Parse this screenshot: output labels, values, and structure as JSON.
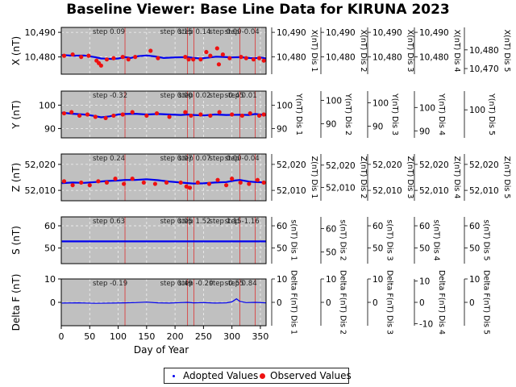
{
  "chart_data": {
    "type": "line",
    "title": "Baseline Viewer: Base Line Data for KIRUNA 2023",
    "xlabel": "Day of Year",
    "xlim": [
      0,
      360
    ],
    "xticks": [
      0,
      50,
      100,
      150,
      200,
      250,
      300,
      350
    ],
    "grid": true,
    "legend_position": "bottom-center",
    "vertical_lines": [
      112,
      222,
      233,
      314,
      341
    ],
    "legend": [
      {
        "label": "Adopted Values",
        "color": "#0000ee",
        "marker": "small-dot"
      },
      {
        "label": "Observed Values",
        "color": "#ee1111",
        "marker": "large-dot"
      }
    ],
    "panels": [
      {
        "ylabel": "X (nT)",
        "ylim": [
          10473,
          10492
        ],
        "yticks": [
          10480,
          10490
        ],
        "ytick_labels": [
          "10,480",
          "10,490"
        ],
        "steps": [
          {
            "x": 112,
            "label": "step 0.09"
          },
          {
            "x": 222,
            "label": "step 0.15"
          },
          {
            "x": 233,
            "label": "step 0.14"
          },
          {
            "x": 314,
            "label": "step 0.00"
          },
          {
            "x": 341,
            "label": "step -0.04"
          }
        ],
        "adopted": {
          "x": [
            1,
            20,
            40,
            60,
            70,
            80,
            90,
            100,
            112,
            122,
            135,
            150,
            165,
            180,
            200,
            222,
            233,
            245,
            262,
            272,
            285,
            300,
            314,
            330,
            341,
            350,
            360
          ],
          "y": [
            10480.8,
            10480.5,
            10480.6,
            10479.9,
            10479.4,
            10479.3,
            10479.2,
            10479.4,
            10479.9,
            10479.6,
            10480.3,
            10480.6,
            10480.2,
            10479.6,
            10479.8,
            10479.9,
            10479.6,
            10479.4,
            10479.8,
            10480.1,
            10480.0,
            10479.8,
            10479.9,
            10479.6,
            10479.5,
            10479.8,
            10479.4
          ]
        },
        "observed": {
          "x": [
            5,
            20,
            35,
            48,
            62,
            66,
            70,
            80,
            92,
            108,
            118,
            130,
            157,
            170,
            218,
            224,
            232,
            245,
            255,
            262,
            274,
            277,
            284,
            296,
            316,
            325,
            338,
            348,
            356
          ],
          "y": [
            10480.5,
            10481.0,
            10480.0,
            10480.5,
            10478.5,
            10477.5,
            10476.5,
            10479.0,
            10479.5,
            10480.0,
            10479.0,
            10480.0,
            10482.5,
            10479.5,
            10480.0,
            10479.0,
            10479.0,
            10479.0,
            10482.0,
            10480.5,
            10483.5,
            10477.0,
            10481.0,
            10479.5,
            10480.0,
            10479.5,
            10479.0,
            10479.5,
            10478.5
          ]
        },
        "right_axes": [
          {
            "label": "X(nT) Dis 1",
            "ylim": [
              10473,
              10492
            ],
            "ticks": [
              10480,
              10490
            ],
            "tick_labels": [
              "10,480",
              "10,490"
            ]
          },
          {
            "label": "X(nT) Dis 2",
            "ylim": [
              10473,
              10492
            ],
            "ticks": [
              10480,
              10490
            ],
            "tick_labels": [
              "10,480",
              "10,490"
            ]
          },
          {
            "label": "X(nT) Dis 3",
            "ylim": [
              10473,
              10492
            ],
            "ticks": [
              10480,
              10490
            ],
            "tick_labels": [
              "10,480",
              "10,490"
            ]
          },
          {
            "label": "X(nT) Dis 4",
            "ylim": [
              10473,
              10492
            ],
            "ticks": [
              10480,
              10490
            ],
            "tick_labels": [
              "10,480",
              "10,490"
            ]
          },
          {
            "label": "X(nT) Dis 5",
            "ylim": [
              10467,
              10492
            ],
            "ticks": [
              10470,
              10480
            ],
            "tick_labels": [
              "10,470",
              "10,480"
            ]
          }
        ]
      },
      {
        "ylabel": "Y (nT)",
        "ylim": [
          86,
          106
        ],
        "yticks": [
          90,
          100
        ],
        "ytick_labels": [
          "90",
          "100"
        ],
        "steps": [
          {
            "x": 112,
            "label": "step -0.32"
          },
          {
            "x": 222,
            "label": "step 0.00"
          },
          {
            "x": 233,
            "label": "step 0.02"
          },
          {
            "x": 314,
            "label": "step -0.45"
          },
          {
            "x": 341,
            "label": "step 0.01"
          }
        ],
        "adopted": {
          "x": [
            1,
            20,
            40,
            55,
            70,
            85,
            100,
            112,
            130,
            150,
            170,
            190,
            210,
            222,
            233,
            250,
            270,
            290,
            314,
            330,
            341,
            360
          ],
          "y": [
            96.8,
            96.3,
            96.0,
            95.5,
            94.8,
            95.2,
            96.0,
            96.2,
            96.3,
            96.0,
            96.2,
            96.0,
            95.8,
            96.0,
            95.8,
            95.6,
            96.0,
            95.8,
            95.9,
            95.8,
            96.2,
            95.7
          ]
        },
        "observed": {
          "x": [
            5,
            18,
            32,
            46,
            60,
            78,
            92,
            108,
            125,
            150,
            168,
            190,
            218,
            228,
            245,
            262,
            278,
            300,
            318,
            332,
            348,
            356
          ],
          "y": [
            96.5,
            97.0,
            95.5,
            96.0,
            95.0,
            94.5,
            95.5,
            96.0,
            97.0,
            95.5,
            96.5,
            95.0,
            97.0,
            95.5,
            96.0,
            95.5,
            97.0,
            96.0,
            95.5,
            96.5,
            95.5,
            96.0
          ]
        },
        "right_axes": [
          {
            "label": "Y(nT) Dis 1",
            "ylim": [
              86,
              106
            ],
            "ticks": [
              90,
              100
            ],
            "tick_labels": [
              "90",
              "100"
            ]
          },
          {
            "label": "Y(nT) Dis 2",
            "ylim": [
              84,
              104
            ],
            "ticks": [
              90,
              100
            ],
            "tick_labels": [
              "90",
              "100"
            ]
          },
          {
            "label": "Y(nT) Dis 3",
            "ylim": [
              85,
              105
            ],
            "ticks": [
              90,
              100
            ],
            "tick_labels": [
              "90",
              "100"
            ]
          },
          {
            "label": "Y(nT) Dis 4",
            "ylim": [
              87,
              107
            ],
            "ticks": [
              90,
              100
            ],
            "tick_labels": [
              "90",
              "100"
            ]
          },
          {
            "label": "Y(nT) Dis 5",
            "ylim": [
              88,
              108
            ],
            "ticks": [
              100
            ],
            "tick_labels": [
              "100"
            ]
          }
        ]
      },
      {
        "ylabel": "Z (nT)",
        "ylim": [
          52006,
          52024
        ],
        "yticks": [
          52010,
          52020
        ],
        "ytick_labels": [
          "52,010",
          "52,020"
        ],
        "steps": [
          {
            "x": 112,
            "label": "step 0.24"
          },
          {
            "x": 222,
            "label": "step 0.07"
          },
          {
            "x": 233,
            "label": "step 0.07"
          },
          {
            "x": 314,
            "label": "step 0.00"
          },
          {
            "x": 341,
            "label": "step -0.04"
          }
        ],
        "adopted": {
          "x": [
            1,
            20,
            40,
            60,
            80,
            100,
            112,
            130,
            150,
            170,
            190,
            210,
            222,
            233,
            250,
            270,
            290,
            305,
            314,
            330,
            341,
            360
          ],
          "y": [
            52012.8,
            52013.0,
            52012.9,
            52013.2,
            52013.6,
            52013.8,
            52014.0,
            52014.0,
            52014.3,
            52013.9,
            52013.4,
            52013.0,
            52012.8,
            52012.6,
            52012.7,
            52013.0,
            52013.2,
            52013.8,
            52014.0,
            52013.4,
            52013.2,
            52013.0
          ]
        },
        "observed": {
          "x": [
            5,
            20,
            35,
            50,
            65,
            80,
            95,
            110,
            125,
            145,
            165,
            185,
            210,
            220,
            226,
            240,
            260,
            275,
            290,
            300,
            315,
            330,
            345,
            356
          ],
          "y": [
            52013.5,
            52012.0,
            52013.0,
            52012.0,
            52013.5,
            52013.0,
            52014.5,
            52012.5,
            52014.5,
            52013.0,
            52012.5,
            52013.0,
            52013.0,
            52011.5,
            52011.0,
            52013.0,
            52012.5,
            52014.0,
            52012.0,
            52014.5,
            52013.0,
            52012.5,
            52014.0,
            52013.0
          ]
        },
        "right_axes": [
          {
            "label": "Z(nT) Dis 1",
            "ylim": [
              52006,
              52024
            ],
            "ticks": [
              52010,
              52020
            ],
            "tick_labels": [
              "52,010",
              "52,020"
            ]
          },
          {
            "label": "Z(nT) Dis 2",
            "ylim": [
              52004,
              52025
            ],
            "ticks": [
              52010,
              52020
            ],
            "tick_labels": [
              "52,010",
              "52,020"
            ]
          },
          {
            "label": "Z(nT) Dis 3",
            "ylim": [
              52006,
              52024
            ],
            "ticks": [
              52010,
              52020
            ],
            "tick_labels": [
              "52,010",
              "52,020"
            ]
          },
          {
            "label": "Z(nT) Dis 4",
            "ylim": [
              52006,
              52024
            ],
            "ticks": [
              52010,
              52020
            ],
            "tick_labels": [
              "52,010",
              "52,020"
            ]
          },
          {
            "label": "Z(nT) Dis 5",
            "ylim": [
              52006,
              52024
            ],
            "ticks": [
              52010,
              52020
            ],
            "tick_labels": [
              "52,010",
              "52,020"
            ]
          }
        ]
      },
      {
        "ylabel": "S (nT)",
        "ylim": [
          43,
          64
        ],
        "yticks": [
          50,
          60
        ],
        "ytick_labels": [
          "50",
          "60"
        ],
        "steps": [
          {
            "x": 112,
            "label": "step 0.63"
          },
          {
            "x": 222,
            "label": "step 0.05"
          },
          {
            "x": 233,
            "label": "step 1.52"
          },
          {
            "x": 314,
            "label": "step 1.15"
          },
          {
            "x": 341,
            "label": "step -1.16"
          }
        ],
        "adopted": {
          "x": [
            1,
            360
          ],
          "y": [
            53,
            53
          ]
        },
        "observed": {
          "x": [],
          "y": []
        },
        "right_axes": [
          {
            "label": "s(nT) Dis 1",
            "ylim": [
              43,
              64
            ],
            "ticks": [
              50,
              60
            ],
            "tick_labels": [
              "50",
              "60"
            ]
          },
          {
            "label": "s(nT) Dis 2",
            "ylim": [
              45,
              65
            ],
            "ticks": [
              50,
              60
            ],
            "tick_labels": [
              "50",
              "60"
            ]
          },
          {
            "label": "s(nT) Dis 3",
            "ylim": [
              43,
              64
            ],
            "ticks": [
              50,
              60
            ],
            "tick_labels": [
              "50",
              "60"
            ]
          },
          {
            "label": "s(nT) Dis 4",
            "ylim": [
              43,
              64
            ],
            "ticks": [
              50,
              60
            ],
            "tick_labels": [
              "50",
              "60"
            ]
          },
          {
            "label": "s(nT) Dis 5",
            "ylim": [
              43,
              64
            ],
            "ticks": [
              50,
              60
            ],
            "tick_labels": [
              "50",
              "60"
            ]
          }
        ]
      },
      {
        "ylabel": "Delta F (nT)",
        "ylim": [
          -10,
          10
        ],
        "yticks": [
          0,
          10
        ],
        "ytick_labels": [
          "0",
          "10"
        ],
        "steps": [
          {
            "x": 112,
            "label": "step -0.19"
          },
          {
            "x": 222,
            "label": "step 0.49"
          },
          {
            "x": 233,
            "label": "step -0.20"
          },
          {
            "x": 314,
            "label": "step -0.55"
          },
          {
            "x": 341,
            "label": "step 0.84"
          }
        ],
        "adopted": {
          "x": [
            1,
            30,
            60,
            90,
            112,
            130,
            150,
            170,
            190,
            210,
            222,
            233,
            250,
            270,
            290,
            300,
            308,
            314,
            325,
            341,
            360
          ],
          "y": [
            -0.3,
            -0.2,
            -0.4,
            -0.3,
            -0.2,
            -0.1,
            0.1,
            -0.2,
            -0.3,
            -0.1,
            0.0,
            -0.2,
            -0.1,
            -0.3,
            -0.2,
            0.2,
            1.5,
            0.4,
            -0.1,
            0.0,
            -0.2
          ]
        },
        "observed": {
          "x": [],
          "y": []
        },
        "right_axes": [
          {
            "label": "Delta F(nT) Dis 1",
            "ylim": [
              -10,
              10
            ],
            "ticks": [
              0,
              10
            ],
            "tick_labels": [
              "0",
              "10"
            ]
          },
          {
            "label": "Delta F(nT) Dis 2",
            "ylim": [
              -10,
              10
            ],
            "ticks": [
              0,
              10
            ],
            "tick_labels": [
              "0",
              "10"
            ]
          },
          {
            "label": "Delta F(nT) Dis 3",
            "ylim": [
              -10,
              10
            ],
            "ticks": [
              0,
              10
            ],
            "tick_labels": [
              "0",
              "10"
            ]
          },
          {
            "label": "Delta F(nT) Dis 4",
            "ylim": [
              -11,
              11
            ],
            "ticks": [
              -10,
              0,
              10
            ],
            "tick_labels": [
              "-10",
              "0",
              "10"
            ]
          },
          {
            "label": "Delta F(nT) Dis 5",
            "ylim": [
              -10,
              10
            ],
            "ticks": [
              0,
              10
            ],
            "tick_labels": [
              "0",
              "10"
            ]
          }
        ]
      }
    ]
  }
}
